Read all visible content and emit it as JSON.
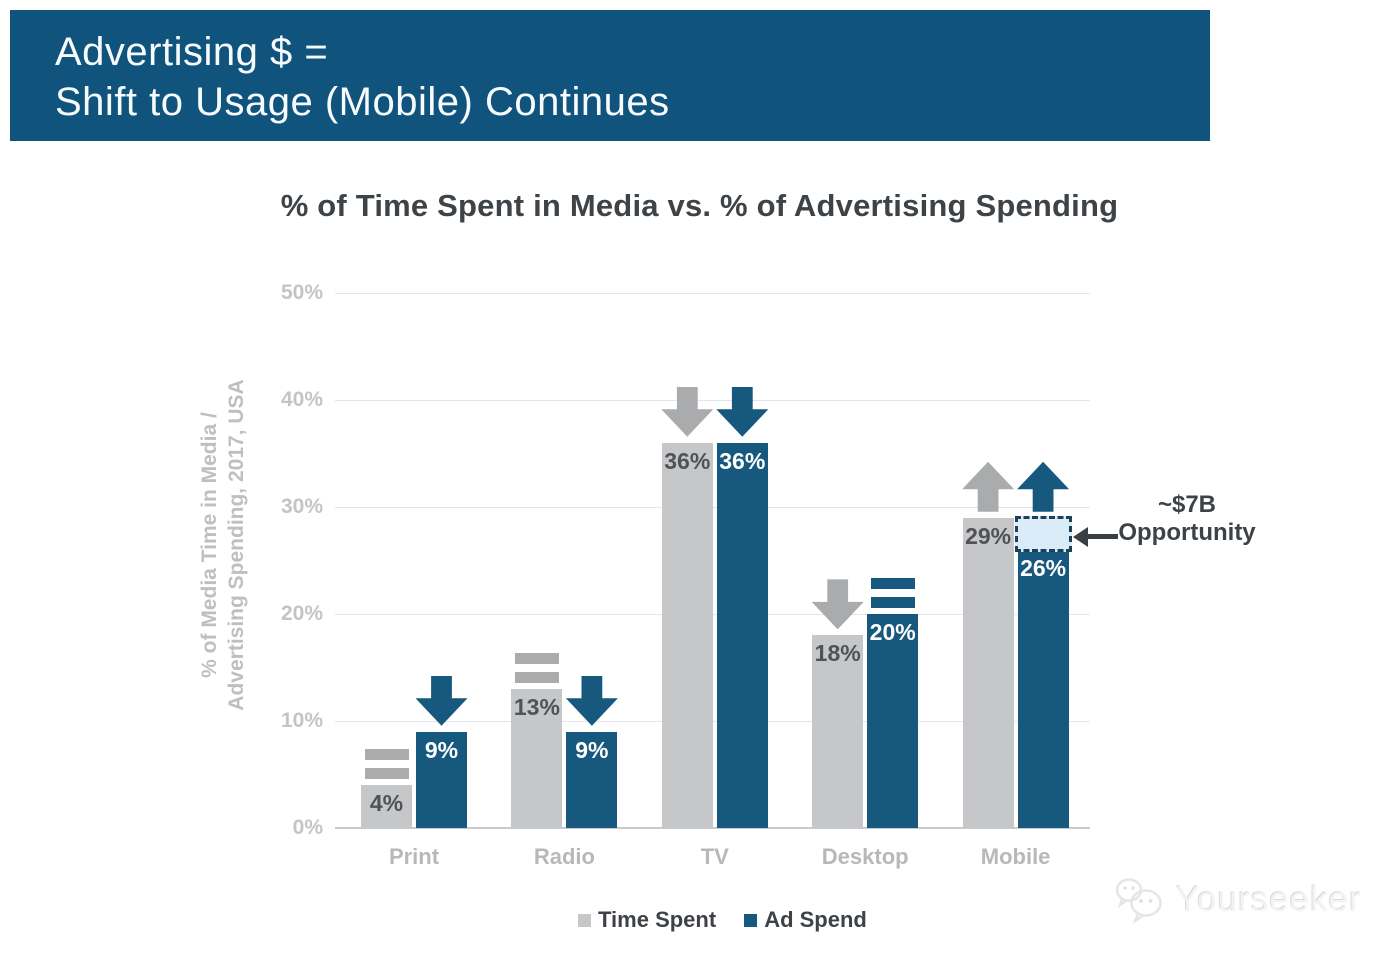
{
  "header": {
    "title_line1": "Advertising $ =",
    "title_line2": "Shift to Usage (Mobile) Continues"
  },
  "colors": {
    "banner_bg": "#10537c",
    "bar_gray": "#c5c7c9",
    "bar_blue": "#16587e",
    "arrow_gray": "#a9abad",
    "arrow_blue": "#16587e",
    "value_label_on_gray": "#505258",
    "value_label_on_blue": "#ffffff",
    "opportunity_box_fill": "#d9ecf8",
    "opportunity_box_border": "#1f4158"
  },
  "chart_data": {
    "type": "bar",
    "title": "% of Time Spent in Media vs. % of Advertising Spending",
    "ylabel_line1": "% of Media Time in Media /",
    "ylabel_line2": "Advertising Spending, 2017, USA",
    "ylim": [
      0,
      50
    ],
    "ytick_labels": [
      "0%",
      "10%",
      "20%",
      "30%",
      "40%",
      "50%"
    ],
    "grid": "horizontal",
    "legend_position": "bottom-center",
    "categories": [
      "Print",
      "Radio",
      "TV",
      "Desktop",
      "Mobile"
    ],
    "series": [
      {
        "name": "Time Spent",
        "color": "#c5c7c9",
        "values": [
          4,
          13,
          36,
          18,
          29
        ],
        "value_labels": [
          "4%",
          "13%",
          "36%",
          "18%",
          "29%"
        ],
        "trends": [
          "flat",
          "flat",
          "down",
          "down",
          "up"
        ]
      },
      {
        "name": "Ad Spend",
        "color": "#16587e",
        "values": [
          9,
          9,
          36,
          20,
          26
        ],
        "value_labels": [
          "9%",
          "9%",
          "36%",
          "20%",
          "26%"
        ],
        "trends": [
          "down",
          "down",
          "down",
          "flat",
          "up"
        ]
      }
    ],
    "annotation": {
      "line1": "~$7B",
      "line2": "Opportunity",
      "box": {
        "category": "Mobile",
        "series": "Ad Spend",
        "from": 26,
        "to": 29
      }
    }
  },
  "watermark": {
    "brand": "Yourseeker"
  }
}
